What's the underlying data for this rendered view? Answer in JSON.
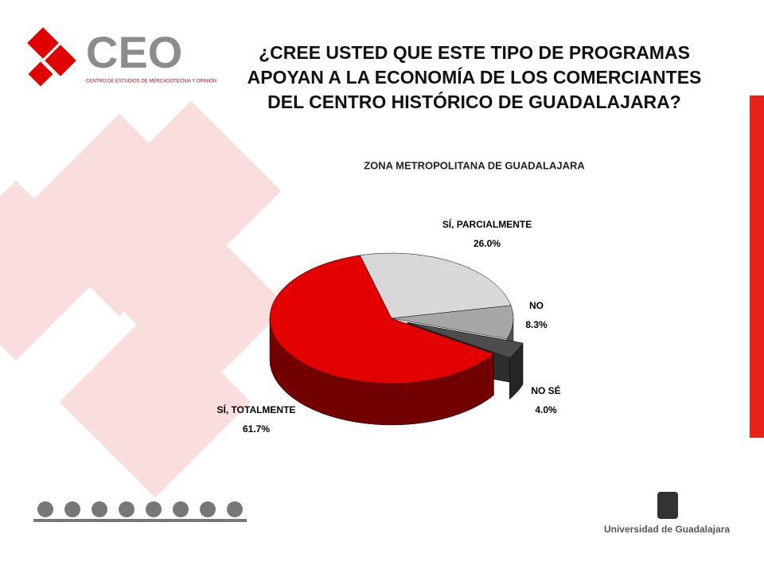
{
  "chart_data": {
    "type": "pie3d",
    "title": "¿CREE USTED QUE ESTE TIPO DE PROGRAMAS APOYAN A LA ECONOMÍA DE LOS COMERCIANTES DEL CENTRO HISTÓRICO DE GUADALAJARA?",
    "subtitle": "ZONA METROPOLITANA DE GUADALAJARA",
    "categories": [
      "SÍ, PARCIALMENTE",
      "NO",
      "NO SÉ",
      "SÍ, TOTALMENTE"
    ],
    "values": [
      26.0,
      8.3,
      4.0,
      61.7
    ],
    "value_labels": [
      "26.0%",
      "8.3%",
      "4.0%",
      "61.7%"
    ],
    "colors": [
      "#d8d8d8",
      "#a6a6a6",
      "#4d4d4d",
      "#e30000"
    ],
    "exploded": [
      false,
      false,
      true,
      false
    ]
  },
  "logos": {
    "ceo": "CEO",
    "ceo_tagline": "CENTRO DE ESTUDIOS DE MERCADOTECNIA Y OPINIÓN",
    "university": "Universidad de Guadalajara"
  }
}
